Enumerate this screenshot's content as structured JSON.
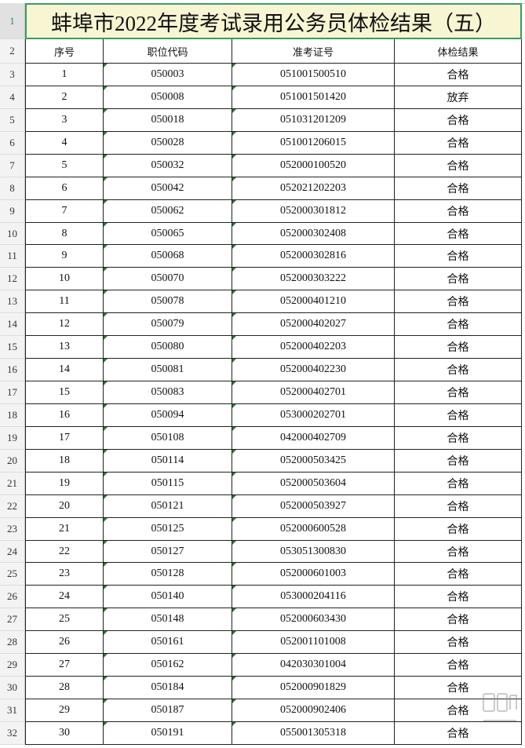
{
  "title": "蚌埠市2022年度考试录用公务员体检结果（五）",
  "headers": [
    "序号",
    "职位代码",
    "准考证号",
    "体检结果"
  ],
  "row_numbers": [
    "1",
    "2",
    "3",
    "4",
    "5",
    "6",
    "7",
    "8",
    "9",
    "10",
    "11",
    "12",
    "13",
    "14",
    "15",
    "16",
    "17",
    "18",
    "19",
    "20",
    "21",
    "22",
    "23",
    "24",
    "25",
    "26",
    "27",
    "28",
    "29",
    "30",
    "31",
    "32"
  ],
  "rows": [
    [
      "1",
      "050003",
      "051001500510",
      "合格"
    ],
    [
      "2",
      "050008",
      "051001501420",
      "放弃"
    ],
    [
      "3",
      "050018",
      "051031201209",
      "合格"
    ],
    [
      "4",
      "050028",
      "051001206015",
      "合格"
    ],
    [
      "5",
      "050032",
      "052000100520",
      "合格"
    ],
    [
      "6",
      "050042",
      "052021202203",
      "合格"
    ],
    [
      "7",
      "050062",
      "052000301812",
      "合格"
    ],
    [
      "8",
      "050065",
      "052000302408",
      "合格"
    ],
    [
      "9",
      "050068",
      "052000302816",
      "合格"
    ],
    [
      "10",
      "050070",
      "052000303222",
      "合格"
    ],
    [
      "11",
      "050078",
      "052000401210",
      "合格"
    ],
    [
      "12",
      "050079",
      "052000402027",
      "合格"
    ],
    [
      "13",
      "050080",
      "052000402203",
      "合格"
    ],
    [
      "14",
      "050081",
      "052000402230",
      "合格"
    ],
    [
      "15",
      "050083",
      "052000402701",
      "合格"
    ],
    [
      "16",
      "050094",
      "053000202701",
      "合格"
    ],
    [
      "17",
      "050108",
      "042000402709",
      "合格"
    ],
    [
      "18",
      "050114",
      "052000503425",
      "合格"
    ],
    [
      "19",
      "050115",
      "052000503604",
      "合格"
    ],
    [
      "20",
      "050121",
      "052000503927",
      "合格"
    ],
    [
      "21",
      "050125",
      "052000600528",
      "合格"
    ],
    [
      "22",
      "050127",
      "053051300830",
      "合格"
    ],
    [
      "23",
      "050128",
      "052000601003",
      "合格"
    ],
    [
      "24",
      "050140",
      "053000204116",
      "合格"
    ],
    [
      "25",
      "050148",
      "052000603430",
      "合格"
    ],
    [
      "26",
      "050161",
      "052001101008",
      "合格"
    ],
    [
      "27",
      "050162",
      "042030301004",
      "合格"
    ],
    [
      "28",
      "050184",
      "052000901829",
      "合格"
    ],
    [
      "29",
      "050187",
      "052000902406",
      "合格"
    ],
    [
      "30",
      "050191",
      "055001305318",
      "合格"
    ]
  ],
  "watermark": {
    "logo_text": "留学网",
    "url_text": "bbs.liuxue86.com"
  },
  "colors": {
    "title_bg": "#f7f5d2",
    "selection": "#3c9a62",
    "text_marker": "#1f7a2e"
  }
}
